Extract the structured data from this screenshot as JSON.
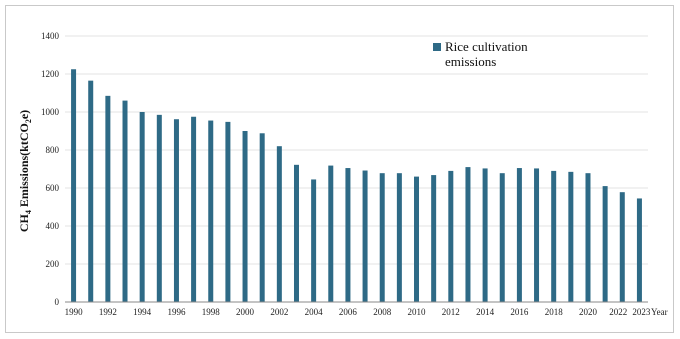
{
  "chart_data": {
    "type": "bar",
    "categories": [
      "1990",
      "1991",
      "1992",
      "1993",
      "1994",
      "1995",
      "1996",
      "1997",
      "1998",
      "1999",
      "2000",
      "2001",
      "2002",
      "2003",
      "2004",
      "2005",
      "2006",
      "2007",
      "2008",
      "2009",
      "2010",
      "2011",
      "2012",
      "2013",
      "2014",
      "2015",
      "2016",
      "2017",
      "2018",
      "2019",
      "2020",
      "2021",
      "2022",
      "2023"
    ],
    "x_tick_labels": [
      "1990",
      "1992",
      "1994",
      "1996",
      "1998",
      "2000",
      "2002",
      "2004",
      "2006",
      "2008",
      "2010",
      "2012",
      "2014",
      "2016",
      "2018",
      "2020",
      "2022",
      "2023"
    ],
    "series": [
      {
        "name": "Rice cultivation emissions",
        "color": "#2e6a86",
        "values": [
          1225,
          1165,
          1085,
          1060,
          1000,
          985,
          962,
          975,
          955,
          948,
          900,
          888,
          820,
          722,
          645,
          718,
          705,
          692,
          678,
          678,
          660,
          668,
          690,
          710,
          703,
          678,
          705,
          703,
          690,
          685,
          678,
          610,
          578,
          545
        ]
      }
    ],
    "legend": {
      "lines": [
        "Rice cultivation",
        "emissions"
      ],
      "position": "top-right"
    },
    "title": "",
    "xlabel": "Year",
    "ylabel": {
      "main": "CH",
      "sub1": "4",
      "middle": " Emissions(ktCO",
      "sub2": "2",
      "end": "e)"
    },
    "ylim": [
      0,
      1400
    ],
    "y_ticks": [
      0,
      200,
      400,
      600,
      800,
      1000,
      1200,
      1400
    ],
    "grid": "horizontal"
  }
}
